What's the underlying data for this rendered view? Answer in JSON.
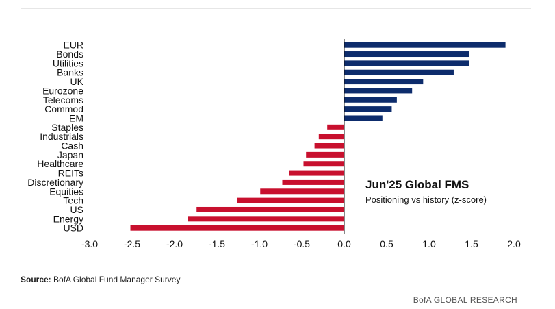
{
  "chart_data": {
    "type": "bar",
    "orientation": "horizontal",
    "title": "Jun'25 Global FMS",
    "subtitle": "Positioning vs history (z-score)",
    "categories": [
      "EUR",
      "Bonds",
      "Utilities",
      "Banks",
      "UK",
      "Eurozone",
      "Telecoms",
      "Commod",
      "EM",
      "Staples",
      "Industrials",
      "Cash",
      "Japan",
      "Healthcare",
      "REITs",
      "Discretionary",
      "Equities",
      "Tech",
      "US",
      "Energy",
      "USD"
    ],
    "values": [
      1.9,
      1.47,
      1.47,
      1.29,
      0.93,
      0.8,
      0.62,
      0.56,
      0.45,
      -0.2,
      -0.3,
      -0.35,
      -0.45,
      -0.48,
      -0.65,
      -0.73,
      -0.99,
      -1.26,
      -1.74,
      -1.84,
      -2.52
    ],
    "xlim": [
      -3.0,
      2.0
    ],
    "xticks": [
      "-3.0",
      "-2.5",
      "-2.0",
      "-1.5",
      "-1.0",
      "-0.5",
      "0.0",
      "0.5",
      "1.0",
      "1.5",
      "2.0"
    ],
    "colors": {
      "positive": "#0d2c6c",
      "negative": "#c8102e"
    },
    "grid": false
  },
  "footer": {
    "source_label": "Source:",
    "source_text": " BofA Global Fund Manager Survey",
    "brand": "BofA GLOBAL RESEARCH"
  }
}
